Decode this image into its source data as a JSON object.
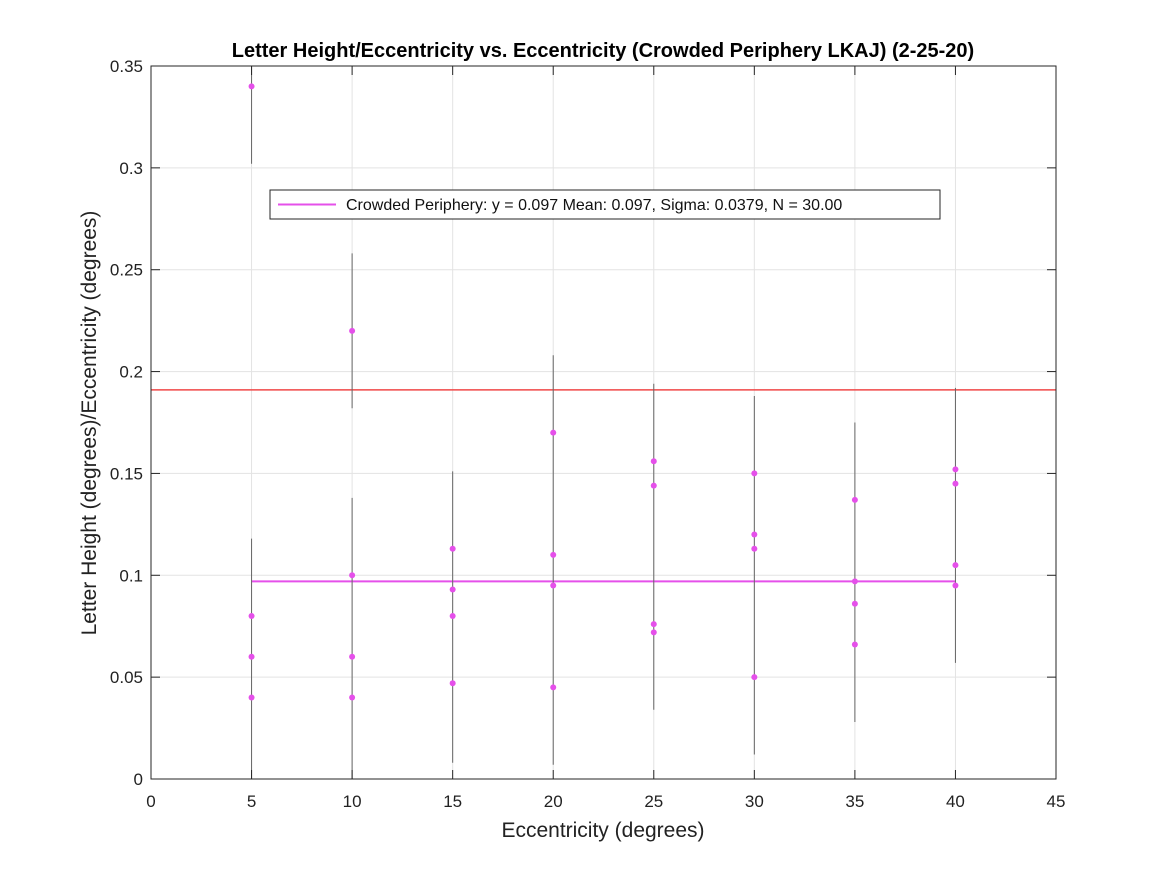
{
  "chart_data": {
    "type": "scatter",
    "title": "Letter Height/Eccentricity vs. Eccentricity (Crowded Periphery LKAJ) (2-25-20)",
    "xlabel": "Eccentricity (degrees)",
    "ylabel": "Letter Height (degrees)/Eccentricity (degrees)",
    "xlim": [
      0,
      45
    ],
    "ylim": [
      0,
      0.35
    ],
    "x_ticks": [
      "0",
      "5",
      "10",
      "15",
      "20",
      "25",
      "30",
      "35",
      "40",
      "45"
    ],
    "y_ticks": [
      "0",
      "0.05",
      "0.1",
      "0.15",
      "0.2",
      "0.25",
      "0.3",
      "0.35"
    ],
    "x_tick_values": [
      0,
      5,
      10,
      15,
      20,
      25,
      30,
      35,
      40,
      45
    ],
    "y_tick_values": [
      0,
      0.05,
      0.1,
      0.15,
      0.2,
      0.25,
      0.3,
      0.35
    ],
    "grid": true,
    "legend_position": "top-center",
    "legend": [
      {
        "label": "Crowded Periphery: y = 0.097 Mean: 0.097, Sigma: 0.0379, N = 30.00",
        "color": "#e550ea"
      }
    ],
    "series": [
      {
        "name": "Crowded Periphery",
        "color": "#e550ea",
        "points": [
          {
            "x": 5,
            "y": 0.34
          },
          {
            "x": 5,
            "y": 0.08
          },
          {
            "x": 5,
            "y": 0.06
          },
          {
            "x": 5,
            "y": 0.04
          },
          {
            "x": 10,
            "y": 0.22
          },
          {
            "x": 10,
            "y": 0.1
          },
          {
            "x": 10,
            "y": 0.06
          },
          {
            "x": 10,
            "y": 0.04
          },
          {
            "x": 15,
            "y": 0.113
          },
          {
            "x": 15,
            "y": 0.093
          },
          {
            "x": 15,
            "y": 0.08
          },
          {
            "x": 15,
            "y": 0.047
          },
          {
            "x": 20,
            "y": 0.17
          },
          {
            "x": 20,
            "y": 0.11
          },
          {
            "x": 20,
            "y": 0.095
          },
          {
            "x": 20,
            "y": 0.045
          },
          {
            "x": 25,
            "y": 0.156
          },
          {
            "x": 25,
            "y": 0.144
          },
          {
            "x": 25,
            "y": 0.076
          },
          {
            "x": 25,
            "y": 0.072
          },
          {
            "x": 30,
            "y": 0.15
          },
          {
            "x": 30,
            "y": 0.12
          },
          {
            "x": 30,
            "y": 0.113
          },
          {
            "x": 30,
            "y": 0.05
          },
          {
            "x": 35,
            "y": 0.137
          },
          {
            "x": 35,
            "y": 0.097
          },
          {
            "x": 35,
            "y": 0.086
          },
          {
            "x": 35,
            "y": 0.066
          },
          {
            "x": 40,
            "y": 0.152
          },
          {
            "x": 40,
            "y": 0.145
          },
          {
            "x": 40,
            "y": 0.105
          },
          {
            "x": 40,
            "y": 0.095
          }
        ]
      }
    ],
    "error_bars": [
      {
        "x": 5,
        "low": 0.0,
        "high": 0.118
      },
      {
        "x": 5,
        "low": 0.302,
        "high": 0.35
      },
      {
        "x": 10,
        "low": 0.0,
        "high": 0.138
      },
      {
        "x": 10,
        "low": 0.182,
        "high": 0.258
      },
      {
        "x": 15,
        "low": 0.008,
        "high": 0.151
      },
      {
        "x": 20,
        "low": 0.007,
        "high": 0.208
      },
      {
        "x": 25,
        "low": 0.034,
        "high": 0.194
      },
      {
        "x": 30,
        "low": 0.012,
        "high": 0.188
      },
      {
        "x": 35,
        "low": 0.028,
        "high": 0.175
      },
      {
        "x": 40,
        "low": 0.057,
        "high": 0.192
      }
    ],
    "error_bar_color": "#666666",
    "mean_line": {
      "x_start": 5,
      "x_end": 40,
      "y": 0.097,
      "color": "#e550ea"
    },
    "reference_line": {
      "y": 0.191,
      "color": "#f04848"
    }
  }
}
